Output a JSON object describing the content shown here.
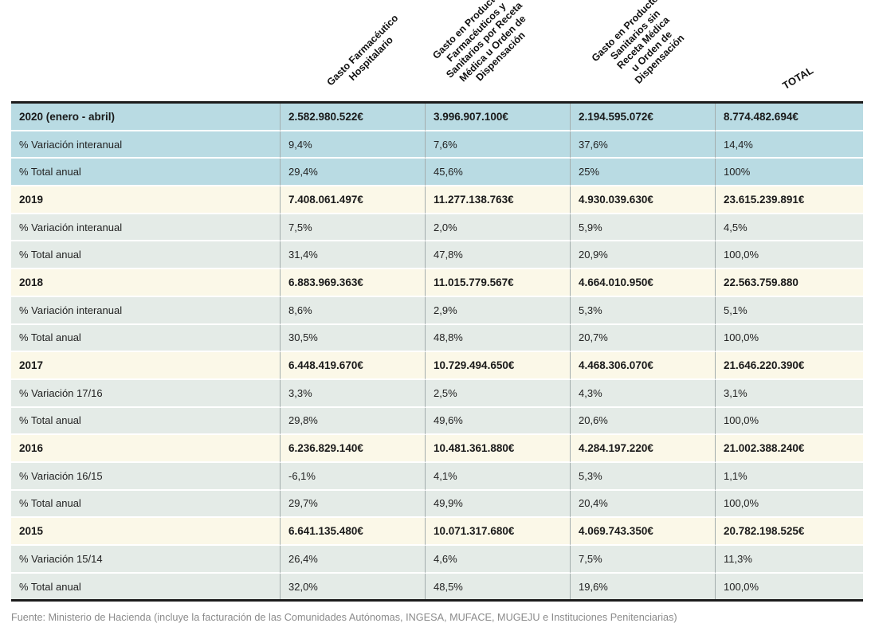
{
  "table": {
    "columns_display": [
      "Gasto Farmacéutico\nHospitalario",
      "Gasto en Productos\nFarmacéuticos y\nSanitarios por Receta\nMédica u Orden de\nDispensación",
      "Gasto en Productos\nSanitarios sin\nReceta Médica\nu Orden de\nDispensación",
      "TOTAL"
    ]
  },
  "chart_data": {
    "type": "table",
    "columns": [
      "",
      "Gasto Farmacéutico Hospitalario",
      "Gasto en Productos Farmacéuticos y Sanitarios por Receta Médica u Orden de Dispensación",
      "Gasto en Productos Sanitarios sin Receta Médica u Orden de Dispensación",
      "TOTAL"
    ],
    "groups": [
      {
        "year_label": "2020 (enero - abril)",
        "amounts": [
          "2.582.980.522€",
          "3.996.907.100€",
          "2.194.595.072€",
          "8.774.482.694€"
        ],
        "variation_label": "% Variación interanual",
        "variation_values": [
          "9,4%",
          "7,6%",
          "37,6%",
          "14,4%"
        ],
        "total_label": "% Total anual",
        "total_values": [
          "29,4%",
          "45,6%",
          "25%",
          "100%"
        ],
        "highlight": true
      },
      {
        "year_label": "2019",
        "amounts": [
          "7.408.061.497€",
          "11.277.138.763€",
          "4.930.039.630€",
          "23.615.239.891€"
        ],
        "variation_label": "% Variación interanual",
        "variation_values": [
          "7,5%",
          "2,0%",
          "5,9%",
          "4,5%"
        ],
        "total_label": "% Total anual",
        "total_values": [
          "31,4%",
          "47,8%",
          "20,9%",
          "100,0%"
        ],
        "highlight": false
      },
      {
        "year_label": "2018",
        "amounts": [
          "6.883.969.363€",
          "11.015.779.567€",
          "4.664.010.950€",
          "22.563.759.880"
        ],
        "variation_label": "% Variación interanual",
        "variation_values": [
          "8,6%",
          "2,9%",
          "5,3%",
          "5,1%"
        ],
        "total_label": "% Total anual",
        "total_values": [
          "30,5%",
          "48,8%",
          "20,7%",
          "100,0%"
        ],
        "highlight": false
      },
      {
        "year_label": "2017",
        "amounts": [
          "6.448.419.670€",
          "10.729.494.650€",
          "4.468.306.070€",
          "21.646.220.390€"
        ],
        "variation_label": "% Variación 17/16",
        "variation_values": [
          "3,3%",
          "2,5%",
          "4,3%",
          "3,1%"
        ],
        "total_label": "% Total anual",
        "total_values": [
          "29,8%",
          "49,6%",
          "20,6%",
          "100,0%"
        ],
        "highlight": false
      },
      {
        "year_label": "2016",
        "amounts": [
          "6.236.829.140€",
          "10.481.361.880€",
          "4.284.197.220€",
          "21.002.388.240€"
        ],
        "variation_label": "% Variación 16/15",
        "variation_values": [
          "-6,1%",
          "4,1%",
          "5,3%",
          "1,1%"
        ],
        "total_label": "% Total anual",
        "total_values": [
          "29,7%",
          "49,9%",
          "20,4%",
          "100,0%"
        ],
        "highlight": false
      },
      {
        "year_label": "2015",
        "amounts": [
          "6.641.135.480€",
          "10.071.317.680€",
          "4.069.743.350€",
          "20.782.198.525€"
        ],
        "variation_label": "% Variación 15/14",
        "variation_values": [
          "26,4%",
          "4,6%",
          "7,5%",
          "11,3%"
        ],
        "total_label": "% Total anual",
        "total_values": [
          "32,0%",
          "48,5%",
          "19,6%",
          "100,0%"
        ],
        "highlight": false
      }
    ]
  },
  "colors": {
    "highlight_rows_bg": "#b9dbe3",
    "year_row_bg": "#fbf8e8",
    "percent_row_bg": "#e4ebe7",
    "table_border": "#1c1c1c"
  },
  "footer": "Fuente: Ministerio de Hacienda (incluye la facturación de las Comunidades Autónomas, INGESA, MUFACE, MUGEJU e Instituciones Penitenciarias)"
}
